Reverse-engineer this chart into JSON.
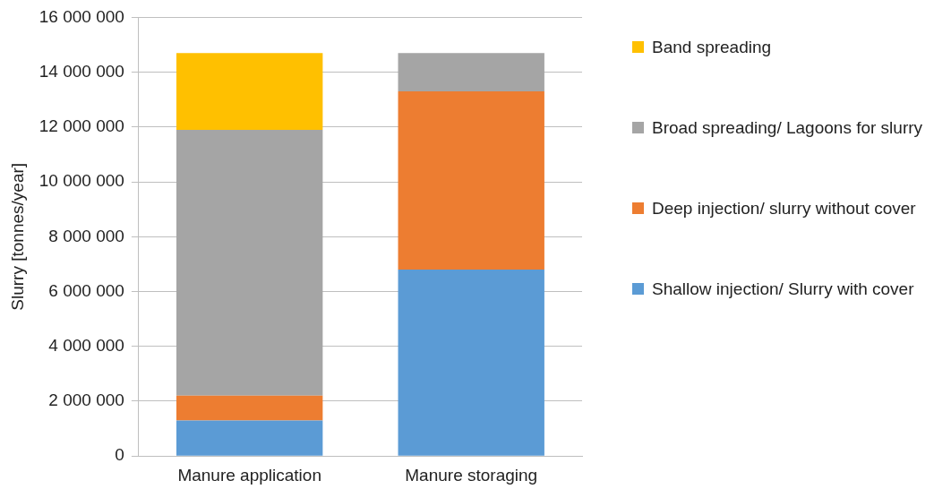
{
  "chart_data": {
    "type": "bar",
    "ylabel": "Slurry [tonnes/year]",
    "categories": [
      "Manure application",
      "Manure storaging"
    ],
    "stacked": true,
    "series": [
      {
        "name": "Shallow injection/ Slurry with cover",
        "color": "#5b9bd5",
        "values": [
          1300000,
          6800000
        ]
      },
      {
        "name": "Deep injection/ slurry without cover",
        "color": "#ed7d31",
        "values": [
          900000,
          6500000
        ]
      },
      {
        "name": "Broad spreading/ Lagoons for slurry",
        "color": "#a5a5a5",
        "values": [
          9700000,
          1400000
        ]
      },
      {
        "name": "Band spreading",
        "color": "#ffc000",
        "values": [
          2800000,
          null
        ]
      }
    ],
    "ylim": [
      0,
      16000000
    ],
    "yticks": [
      {
        "value": 0,
        "label": "0"
      },
      {
        "value": 2000000,
        "label": "2 000 000"
      },
      {
        "value": 4000000,
        "label": "4 000 000"
      },
      {
        "value": 6000000,
        "label": "6 000 000"
      },
      {
        "value": 8000000,
        "label": "8 000 000"
      },
      {
        "value": 10000000,
        "label": "10 000 000"
      },
      {
        "value": 12000000,
        "label": "12 000 000"
      },
      {
        "value": 14000000,
        "label": "14 000 000"
      },
      {
        "value": 16000000,
        "label": "16 000 000"
      }
    ],
    "grid": "y",
    "legend": "right"
  }
}
